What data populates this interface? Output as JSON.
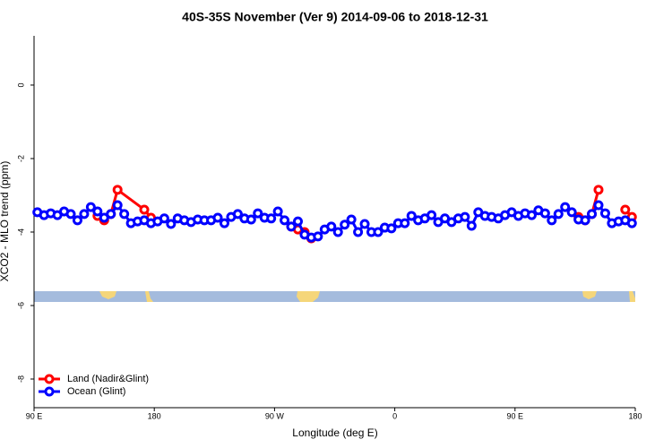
{
  "chart_data": {
    "type": "line",
    "title": "40S-35S November (Ver 9)   2014-09-06 to 2018-12-31",
    "xlabel": "Longitude (deg E)",
    "ylabel": "XCO2 - MLO trend (ppm)",
    "xlim": [
      90,
      540
    ],
    "xticks": [
      {
        "value": 90,
        "label": "90 E"
      },
      180,
      {
        "value": 270,
        "label": "90 W"
      },
      {
        "value": 360,
        "label": "0"
      },
      {
        "value": 450,
        "label": "90 E"
      },
      {
        "value": 540,
        "label": "180"
      }
    ],
    "ylim": [
      -8.78,
      1.34
    ],
    "yticks": [
      0,
      -2,
      -4,
      -6,
      -8
    ],
    "legend": "bottomleft",
    "series": [
      {
        "name": "Land (Nadir&Glint)",
        "color": "#ff0000",
        "x": [
          137.5,
          142.5,
          147.5,
          152.5,
          172.5,
          177.5,
          182.5,
          282.5,
          287.5,
          292.5,
          297.5,
          302.5,
          497.5,
          502.5,
          507.5,
          512.5,
          517.5,
          532.5,
          537.5
        ],
        "values": [
          -3.56,
          -3.68,
          -3.51,
          -2.85,
          -3.39,
          -3.61,
          null,
          -3.85,
          -3.93,
          -4.0,
          -4.17,
          null,
          -3.59,
          -3.68,
          -3.51,
          -2.85,
          null,
          -3.39,
          -3.59
        ]
      },
      {
        "name": "Ocean (Glint)",
        "color": "#0000ff",
        "x": [
          92.5,
          97.5,
          102.5,
          107.5,
          112.5,
          117.5,
          122.5,
          127.5,
          132.5,
          137.5,
          142.5,
          147.5,
          152.5,
          157.5,
          162.5,
          167.5,
          172.5,
          177.5,
          182.5,
          187.5,
          192.5,
          197.5,
          202.5,
          207.5,
          212.5,
          217.5,
          222.5,
          227.5,
          232.5,
          237.5,
          242.5,
          247.5,
          252.5,
          257.5,
          262.5,
          267.5,
          272.5,
          277.5,
          282.5,
          287.5,
          292.5,
          297.5,
          302.5,
          307.5,
          312.5,
          317.5,
          322.5,
          327.5,
          332.5,
          337.5,
          342.5,
          347.5,
          352.5,
          357.5,
          362.5,
          367.5,
          372.5,
          377.5,
          382.5,
          387.5,
          392.5,
          397.5,
          402.5,
          407.5,
          412.5,
          417.5,
          422.5,
          427.5,
          432.5,
          437.5,
          442.5,
          447.5,
          452.5,
          457.5,
          462.5,
          467.5,
          472.5,
          477.5,
          482.5,
          487.5,
          492.5,
          497.5,
          502.5,
          507.5,
          512.5,
          517.5,
          522.5,
          527.5,
          532.5,
          537.5
        ],
        "values": [
          -3.46,
          -3.54,
          -3.49,
          -3.54,
          -3.44,
          -3.51,
          -3.68,
          -3.51,
          -3.32,
          -3.44,
          -3.61,
          -3.51,
          -3.27,
          -3.51,
          -3.76,
          -3.71,
          -3.68,
          -3.76,
          -3.71,
          -3.63,
          -3.78,
          -3.63,
          -3.68,
          -3.73,
          -3.66,
          -3.68,
          -3.68,
          -3.61,
          -3.76,
          -3.59,
          -3.51,
          -3.63,
          -3.66,
          -3.49,
          -3.61,
          -3.63,
          -3.44,
          -3.68,
          -3.85,
          -3.71,
          -4.07,
          -4.15,
          -4.12,
          -3.93,
          -3.85,
          -4.0,
          -3.8,
          -3.66,
          -4.0,
          -3.78,
          -4.0,
          -4.0,
          -3.88,
          -3.9,
          -3.76,
          -3.76,
          -3.56,
          -3.68,
          -3.63,
          -3.54,
          -3.73,
          -3.63,
          -3.73,
          -3.63,
          -3.59,
          -3.83,
          -3.46,
          -3.56,
          -3.59,
          -3.63,
          -3.54,
          -3.46,
          -3.56,
          -3.49,
          -3.54,
          -3.41,
          -3.49,
          -3.68,
          -3.51,
          -3.32,
          -3.46,
          -3.66,
          -3.68,
          -3.51,
          -3.27,
          -3.49,
          -3.76,
          -3.71,
          -3.68,
          -3.76
        ]
      }
    ]
  }
}
